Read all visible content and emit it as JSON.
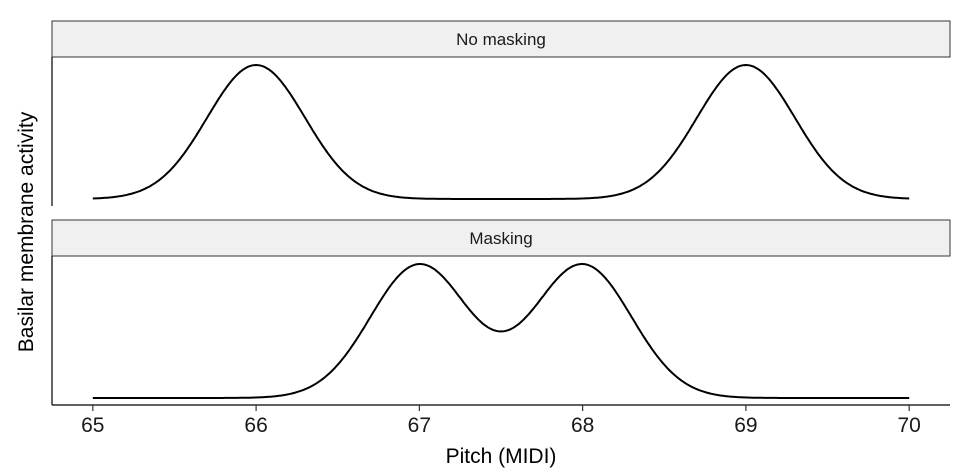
{
  "chart_data": {
    "type": "line",
    "xlabel": "Pitch (MIDI)",
    "ylabel": "Basilar membrane activity",
    "xlim": [
      64.75,
      70.25
    ],
    "x_ticks": [
      65,
      66,
      67,
      68,
      69,
      70
    ],
    "grid": false,
    "legend": "none",
    "line_color": "#000000",
    "strip_fill": "#f0f0f0",
    "panels": [
      {
        "label": "No masking",
        "peaks": [
          66,
          69
        ],
        "series": {
          "x": [
            65.0,
            65.25,
            65.5,
            65.75,
            66.0,
            66.25,
            66.5,
            66.75,
            67.0,
            67.5,
            68.0,
            68.25,
            68.5,
            68.75,
            69.0,
            69.25,
            69.5,
            69.75,
            70.0
          ],
          "y": [
            0.0,
            0.03,
            0.29,
            0.81,
            1.0,
            0.81,
            0.29,
            0.03,
            0.0,
            0.0,
            0.0,
            0.03,
            0.29,
            0.81,
            1.0,
            0.81,
            0.29,
            0.03,
            0.0
          ]
        }
      },
      {
        "label": "Masking",
        "peaks": [
          67,
          68
        ],
        "series": {
          "x": [
            65.0,
            65.5,
            66.0,
            66.25,
            66.5,
            66.75,
            67.0,
            67.25,
            67.5,
            67.75,
            68.0,
            68.25,
            68.5,
            68.75,
            69.0,
            69.5,
            70.0
          ],
          "y": [
            0.0,
            0.0,
            0.0,
            0.03,
            0.29,
            0.81,
            1.0,
            0.82,
            0.52,
            0.82,
            1.0,
            0.81,
            0.29,
            0.03,
            0.0,
            0.0,
            0.0
          ]
        }
      }
    ]
  }
}
